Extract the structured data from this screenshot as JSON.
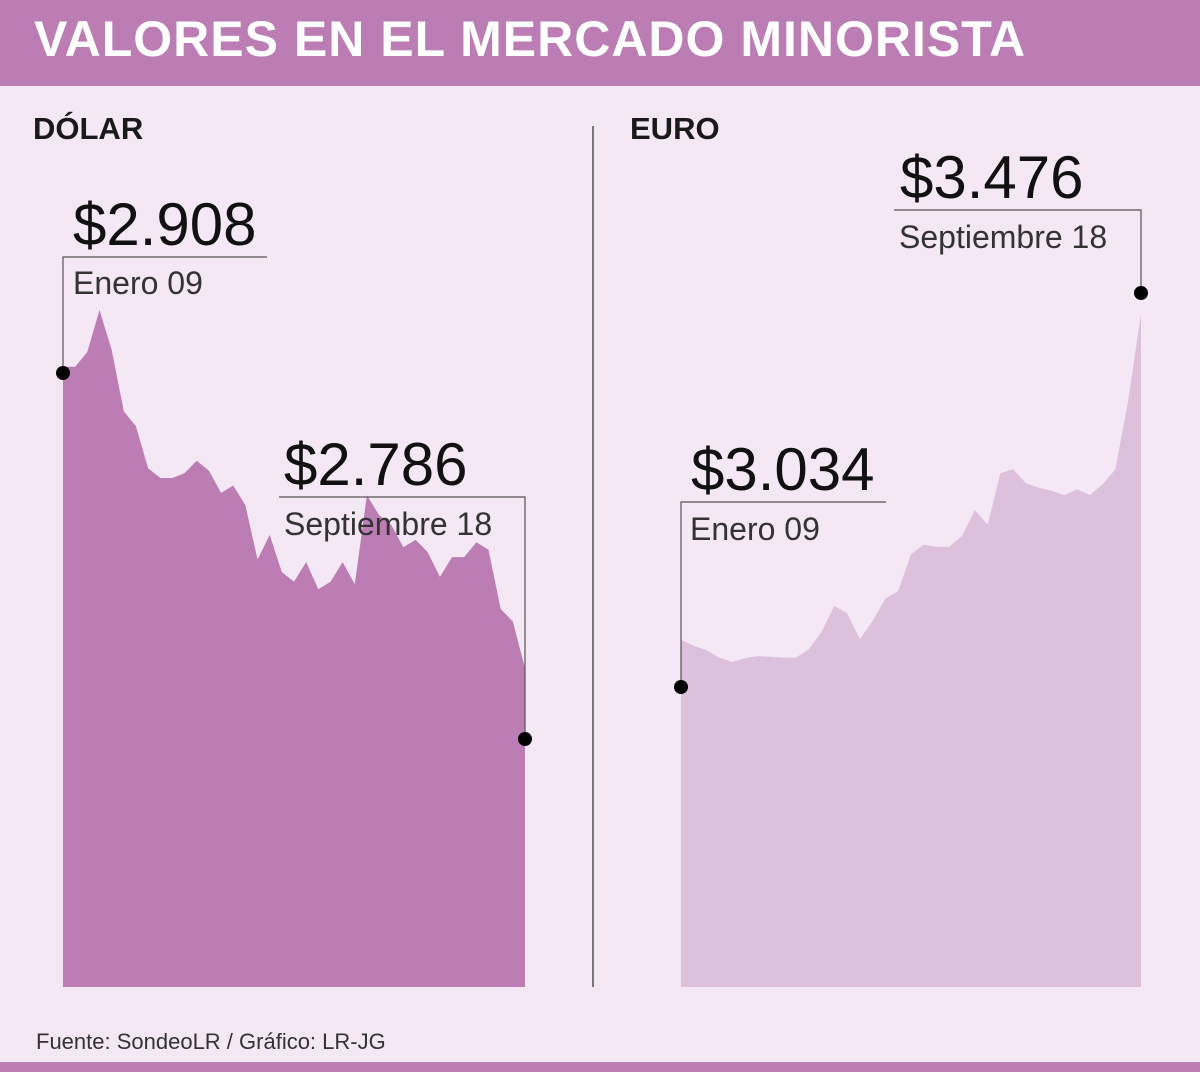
{
  "title": "VALORES EN EL MERCADO MINORISTA",
  "footer": "Fuente: SondeoLR / Gráfico: LR-JG",
  "colors": {
    "header": "#bb7db4",
    "background": "#f3e8f3",
    "dolar_fill": "#bb7db4",
    "euro_fill": "#dcc0dc"
  },
  "chart_data": [
    {
      "type": "area",
      "title": "DÓLAR",
      "ylim": [
        2757,
        2931
      ],
      "start": {
        "value": "$2.908",
        "label": "Enero 09"
      },
      "end": {
        "value": "$2.786",
        "label": "Septiembre 18"
      },
      "values": [
        2908,
        2908,
        2914,
        2931,
        2915,
        2890,
        2884,
        2867,
        2863,
        2863,
        2865,
        2870,
        2866,
        2857,
        2860,
        2852,
        2830,
        2840,
        2825,
        2821,
        2829,
        2818,
        2821,
        2829,
        2820,
        2856,
        2848,
        2844,
        2835,
        2838,
        2833,
        2823,
        2831,
        2831,
        2837,
        2834,
        2810,
        2805,
        2786
      ]
    },
    {
      "type": "area",
      "title": "EURO",
      "ylim": [
        2901,
        3504
      ],
      "start": {
        "value": "$3.034",
        "label": "Enero 09"
      },
      "end": {
        "value": "$3.476",
        "label": "Septiembre 18"
      },
      "values": [
        3034,
        3026,
        3020,
        3010,
        3004,
        3009,
        3012,
        3011,
        3010,
        3010,
        3021,
        3045,
        3080,
        3070,
        3035,
        3060,
        3090,
        3100,
        3150,
        3163,
        3160,
        3160,
        3175,
        3210,
        3190,
        3260,
        3265,
        3246,
        3240,
        3236,
        3230,
        3238,
        3230,
        3245,
        3265,
        3358,
        3476
      ]
    }
  ]
}
